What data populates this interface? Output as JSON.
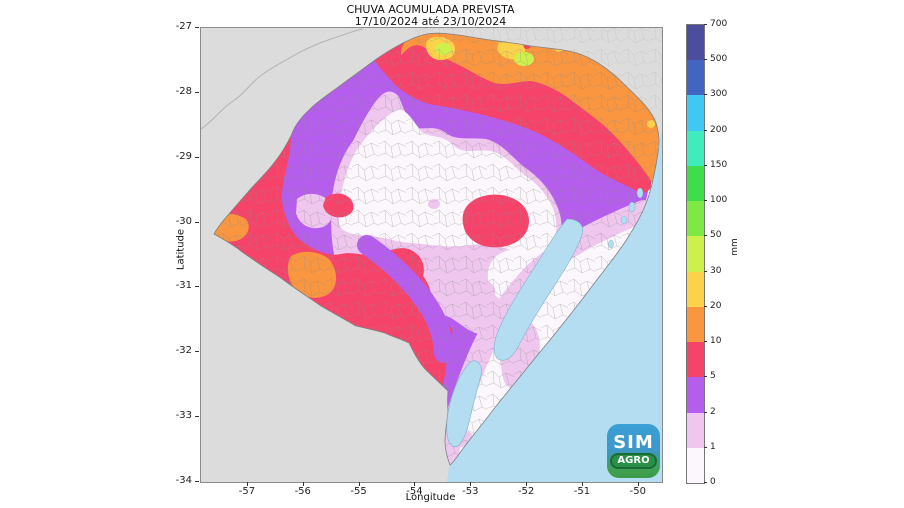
{
  "title": {
    "line1": "CHUVA ACUMULADA PREVISTA",
    "line2": "17/10/2024 até 23/10/2024"
  },
  "axes": {
    "x_label": "Longitude",
    "y_label": "Latitude",
    "x_ticks": [
      -57,
      -56,
      -55,
      -54,
      -53,
      -52,
      -51,
      -50
    ],
    "y_ticks": [
      -27,
      -28,
      -29,
      -30,
      -31,
      -32,
      -33,
      -34
    ]
  },
  "colorbar": {
    "unit": "mm",
    "levels": [
      0,
      1,
      2,
      5,
      10,
      20,
      30,
      50,
      100,
      150,
      200,
      300,
      500,
      700
    ],
    "colors": [
      "#fbf7fc",
      "#efc6ee",
      "#b55ded",
      "#f5436a",
      "#f9963f",
      "#fbd24a",
      "#cdf04d",
      "#7fe845",
      "#3fdd4b",
      "#3eedbb",
      "#41c8f2",
      "#4365c2",
      "#4c4d9d"
    ]
  },
  "map": {
    "colors": {
      "land": "#dcdcdc",
      "ocean": "#b5ddf1",
      "white": "#fbf7fc",
      "pink": "#efc6ee",
      "purple": "#b55ded",
      "red": "#f5436a",
      "orange": "#f9963f",
      "yellow": "#fbd24a",
      "ygreen": "#cdf04d",
      "green1": "#7fe845",
      "green2": "#3fdd4b",
      "turq": "#3eedbb",
      "cyan": "#41c8f2",
      "blue": "#4365c2",
      "dblue": "#4c4d9d",
      "boundary": "#808080",
      "shore": "#7fb0cc"
    }
  },
  "logo": {
    "line1": "SIM",
    "line2": "AGRO"
  },
  "chart_data": {
    "type": "heatmap",
    "subtype": "choropleth_precipitation_map",
    "title": "CHUVA ACUMULADA PREVISTA",
    "subtitle": "17/10/2024 até 23/10/2024",
    "region_shown": "Rio Grande do Sul (Brazil) with municipal boundaries, Atlantic ocean and Patos/Mirim lagoons",
    "variable": "accumulated forecast precipitation",
    "unit": "mm",
    "xlabel": "Longitude",
    "ylabel": "Latitude",
    "x_ticks": [
      -57,
      -56,
      -55,
      -54,
      -53,
      -52,
      -51,
      -50
    ],
    "y_ticks": [
      -27,
      -28,
      -29,
      -30,
      -31,
      -32,
      -33,
      -34
    ],
    "x_range": [
      -57.84,
      -49.585
    ],
    "y_range": [
      -34,
      -27
    ],
    "legend_position": "right-vertical-colorbar",
    "scale_levels_mm": [
      0,
      1,
      2,
      5,
      10,
      20,
      30,
      50,
      100,
      150,
      200,
      300,
      500,
      700
    ],
    "zones": [
      {
        "area": "northern strip along Santa Catarina border",
        "value_mm": "10-20",
        "peaks": "20-30 yellow patches near lon -54.7 and -53.5; 30-50 spots near lon -54.6/-52.1"
      },
      {
        "area": "northeast corner highlands to coast near Torres",
        "value_mm": "10-20"
      },
      {
        "area": "band just south of northern strip, full width",
        "value_mm": "5-10"
      },
      {
        "area": "northwest band along Argentina border",
        "value_mm": "2-5"
      },
      {
        "area": "central plateau",
        "value_mm": "0-1 ringed by 1-2"
      },
      {
        "area": "west border (Uruguay river) and southwest campanha",
        "value_mm": "5-10",
        "peaks": "10-20 at far west tip and on mid-west border"
      },
      {
        "area": "south-central interior",
        "value_mm": "5-10 crossed by 2-5 band"
      },
      {
        "area": "central-east isolated blob",
        "value_mm": "5-10"
      },
      {
        "area": "band west of Lagoa dos Patos down to Chuí",
        "value_mm": "1-2"
      },
      {
        "area": "coastal plain east of lagoons and far southeast",
        "value_mm": "0-1"
      }
    ]
  }
}
